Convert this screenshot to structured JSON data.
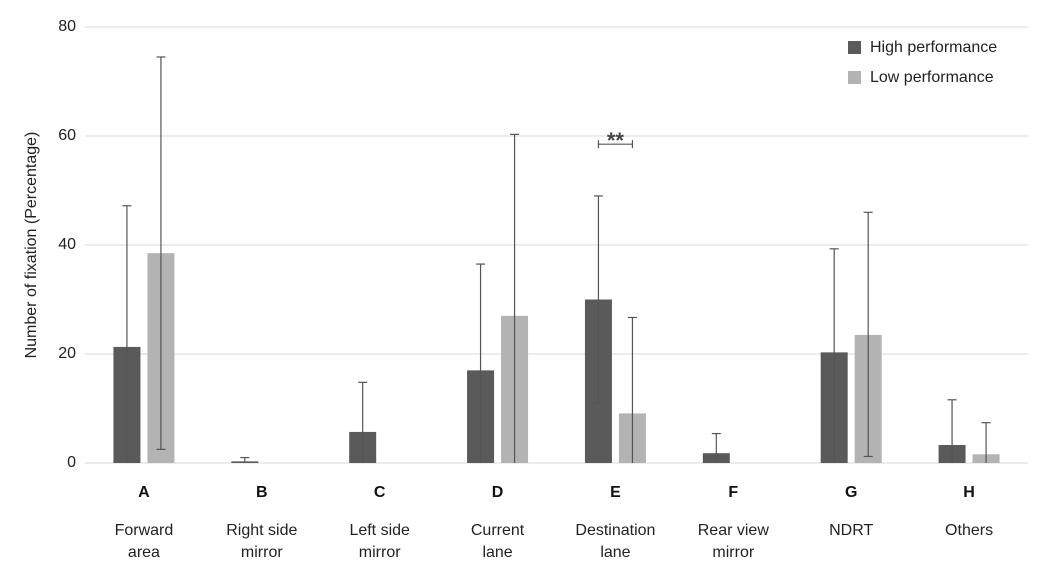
{
  "chart_data": {
    "type": "bar",
    "ylabel": "Number of fixation (Percentage)",
    "ylim": [
      0,
      80
    ],
    "yticks": [
      0,
      20,
      40,
      60,
      80
    ],
    "grid": "horizontal",
    "legend_position": "top-right",
    "categories": [
      {
        "letter": "A",
        "name_lines": [
          "Forward",
          "area"
        ]
      },
      {
        "letter": "B",
        "name_lines": [
          "Right side",
          "mirror"
        ]
      },
      {
        "letter": "C",
        "name_lines": [
          "Left side",
          "mirror"
        ]
      },
      {
        "letter": "D",
        "name_lines": [
          "Current",
          "lane"
        ]
      },
      {
        "letter": "E",
        "name_lines": [
          "Destination",
          "lane"
        ]
      },
      {
        "letter": "F",
        "name_lines": [
          "Rear view",
          "mirror"
        ]
      },
      {
        "letter": "G",
        "name_lines": [
          "NDRT"
        ]
      },
      {
        "letter": "H",
        "name_lines": [
          "Others"
        ]
      }
    ],
    "series": [
      {
        "name": "High performance",
        "color": "#5a5a5a",
        "values": [
          21.3,
          0.3,
          5.7,
          17.0,
          30.0,
          1.8,
          20.3,
          3.3
        ],
        "err_low": [
          0,
          0,
          0,
          0,
          11.0,
          0,
          0,
          0
        ],
        "err_high": [
          47.2,
          1.0,
          14.8,
          36.5,
          49.0,
          5.4,
          39.3,
          11.6
        ]
      },
      {
        "name": "Low performance",
        "color": "#b3b3b3",
        "values": [
          38.5,
          0,
          0,
          27.0,
          9.1,
          0,
          23.5,
          1.6
        ],
        "err_low": [
          2.5,
          0,
          0,
          0,
          0,
          0,
          1.2,
          0
        ],
        "err_high": [
          74.5,
          0,
          0,
          60.3,
          26.7,
          0,
          46.0,
          7.4
        ]
      }
    ],
    "annotations": [
      {
        "text": "**",
        "category_index": 4,
        "y": 58.5
      }
    ]
  }
}
